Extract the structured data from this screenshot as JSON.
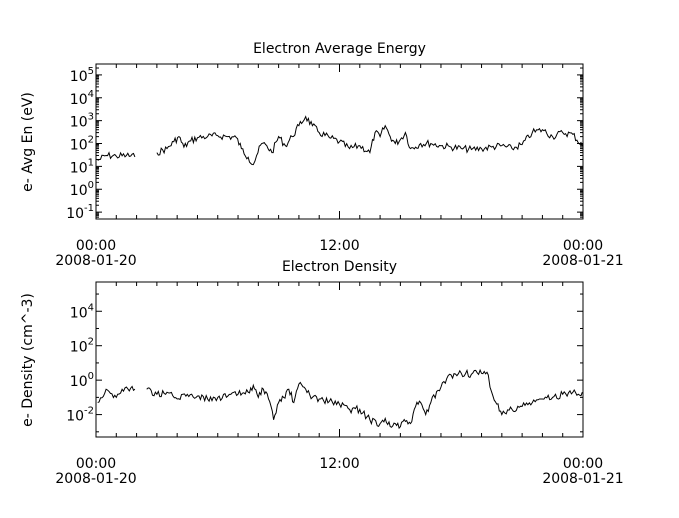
{
  "chart_data": [
    {
      "type": "line",
      "title": "Electron Average Energy",
      "ylabel": "e- Avg En (eV)",
      "yscale": "log",
      "ylim": [
        0.05,
        300000
      ],
      "xlim": [
        "2008-01-20 00:00",
        "2008-01-21 00:00"
      ],
      "xticks": [
        {
          "time": "00:00",
          "date": "2008-01-20"
        },
        {
          "time": "12:00",
          "date": ""
        },
        {
          "time": "00:00",
          "date": "2008-01-21"
        }
      ],
      "ytick_labels": [
        {
          "base": "10",
          "exp": "-1"
        },
        {
          "base": "10",
          "exp": "0"
        },
        {
          "base": "10",
          "exp": "1"
        },
        {
          "base": "10",
          "exp": "2"
        },
        {
          "base": "10",
          "exp": "3"
        },
        {
          "base": "10",
          "exp": "4"
        },
        {
          "base": "10",
          "exp": "5"
        }
      ],
      "color": "#000000",
      "series": [
        {
          "x": [
            "00:05",
            "00:30",
            "01:00",
            "01:30",
            "01:55",
            null,
            "03:00",
            "03:30",
            "03:50",
            "04:05",
            "04:20",
            "04:40",
            "05:00",
            "05:30",
            "06:00",
            "06:30",
            "06:55",
            "07:10",
            "07:30",
            "07:45",
            "07:55",
            "08:10",
            "08:25",
            "08:40",
            "09:00",
            "09:20",
            "09:40",
            "10:00",
            "10:20",
            "10:40",
            "11:00",
            "11:30",
            "12:00",
            "12:30",
            "13:00",
            "13:30",
            "13:45",
            "14:00",
            "14:15",
            "14:30",
            "14:45",
            "15:00",
            "15:15",
            "15:30",
            "15:45",
            "16:00",
            "16:30",
            "17:00",
            "17:30",
            "18:00",
            "18:30",
            "19:00",
            "19:30",
            "20:00",
            "20:30",
            "21:00",
            "21:30",
            "22:00",
            "22:30",
            "23:00",
            "23:30",
            "23:58"
          ],
          "y": [
            18,
            30,
            28,
            30,
            26,
            null,
            40,
            60,
            120,
            200,
            70,
            130,
            180,
            200,
            220,
            200,
            180,
            60,
            25,
            12,
            30,
            100,
            80,
            40,
            200,
            80,
            200,
            600,
            1500,
            600,
            300,
            180,
            120,
            60,
            80,
            40,
            300,
            200,
            600,
            200,
            100,
            150,
            300,
            60,
            70,
            100,
            100,
            80,
            70,
            60,
            55,
            60,
            70,
            80,
            60,
            90,
            300,
            400,
            200,
            300,
            250,
            80
          ]
        }
      ]
    },
    {
      "type": "line",
      "title": "Electron Density",
      "ylabel": "e- Density (cm^-3)",
      "yscale": "log",
      "ylim": [
        0.0005,
        500000
      ],
      "xlim": [
        "2008-01-20 00:00",
        "2008-01-21 00:00"
      ],
      "xticks": [
        {
          "time": "00:00",
          "date": "2008-01-20"
        },
        {
          "time": "12:00",
          "date": ""
        },
        {
          "time": "00:00",
          "date": "2008-01-21"
        }
      ],
      "ytick_labels": [
        {
          "base": "10",
          "exp": "-2"
        },
        {
          "base": "10",
          "exp": "0"
        },
        {
          "base": "10",
          "exp": "2"
        },
        {
          "base": "10",
          "exp": "4"
        }
      ],
      "color": "#000000",
      "series": [
        {
          "x": [
            "00:05",
            "00:30",
            "01:00",
            "01:30",
            "01:55",
            null,
            "02:30",
            "03:00",
            "03:30",
            "04:00",
            "04:30",
            "05:00",
            "05:30",
            "06:00",
            "06:30",
            "07:00",
            "07:30",
            "07:45",
            "08:00",
            "08:15",
            "08:30",
            "08:45",
            "09:00",
            "09:15",
            "09:30",
            "09:45",
            "10:00",
            "10:20",
            "10:40",
            "11:00",
            "11:30",
            "12:00",
            "12:30",
            "13:00",
            "13:30",
            "14:00",
            "14:15",
            "14:30",
            "14:45",
            "15:00",
            "15:15",
            "15:30",
            "15:45",
            "16:00",
            "16:15",
            "16:30",
            "17:00",
            "17:30",
            "18:00",
            "18:30",
            "19:00",
            "19:20",
            "19:30",
            "19:45",
            "20:00",
            "20:30",
            "21:00",
            "21:30",
            "22:00",
            "22:30",
            "23:00",
            "23:30",
            "23:58"
          ],
          "y": [
            0.05,
            0.3,
            0.1,
            0.4,
            0.3,
            null,
            0.3,
            0.15,
            0.2,
            0.08,
            0.15,
            0.12,
            0.08,
            0.1,
            0.12,
            0.15,
            0.2,
            0.5,
            0.1,
            0.3,
            0.08,
            0.005,
            0.05,
            0.1,
            0.3,
            0.05,
            0.6,
            0.3,
            0.1,
            0.08,
            0.06,
            0.04,
            0.02,
            0.02,
            0.005,
            0.003,
            0.006,
            0.002,
            0.003,
            0.002,
            0.004,
            0.003,
            0.03,
            0.05,
            0.01,
            0.05,
            0.4,
            2,
            2.5,
            2.2,
            2.5,
            2,
            0.2,
            0.04,
            0.01,
            0.02,
            0.03,
            0.05,
            0.08,
            0.1,
            0.15,
            0.2,
            0.2
          ]
        }
      ]
    }
  ]
}
